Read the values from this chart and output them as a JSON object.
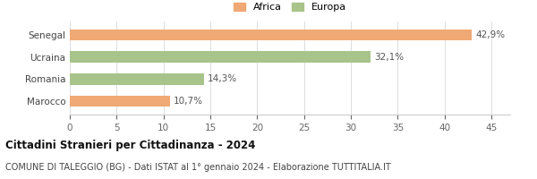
{
  "categories": [
    "Senegal",
    "Ucraina",
    "Romania",
    "Marocco"
  ],
  "values": [
    42.9,
    32.1,
    14.3,
    10.7
  ],
  "labels": [
    "42,9%",
    "32,1%",
    "14,3%",
    "10,7%"
  ],
  "colors": [
    "#f0a875",
    "#a8c48a",
    "#a8c48a",
    "#f0a875"
  ],
  "legend_items": [
    {
      "label": "Africa",
      "color": "#f0a875"
    },
    {
      "label": "Europa",
      "color": "#a8c48a"
    }
  ],
  "xlim": [
    0,
    47
  ],
  "xticks": [
    0,
    5,
    10,
    15,
    20,
    25,
    30,
    35,
    40,
    45
  ],
  "title": "Cittadini Stranieri per Cittadinanza - 2024",
  "subtitle": "COMUNE DI TALEGGIO (BG) - Dati ISTAT al 1° gennaio 2024 - Elaborazione TUTTITALIA.IT",
  "bg_color": "#ffffff",
  "bar_height": 0.5,
  "title_fontsize": 8.5,
  "subtitle_fontsize": 7.0,
  "label_fontsize": 7.5,
  "tick_fontsize": 7.5,
  "legend_fontsize": 8.0
}
